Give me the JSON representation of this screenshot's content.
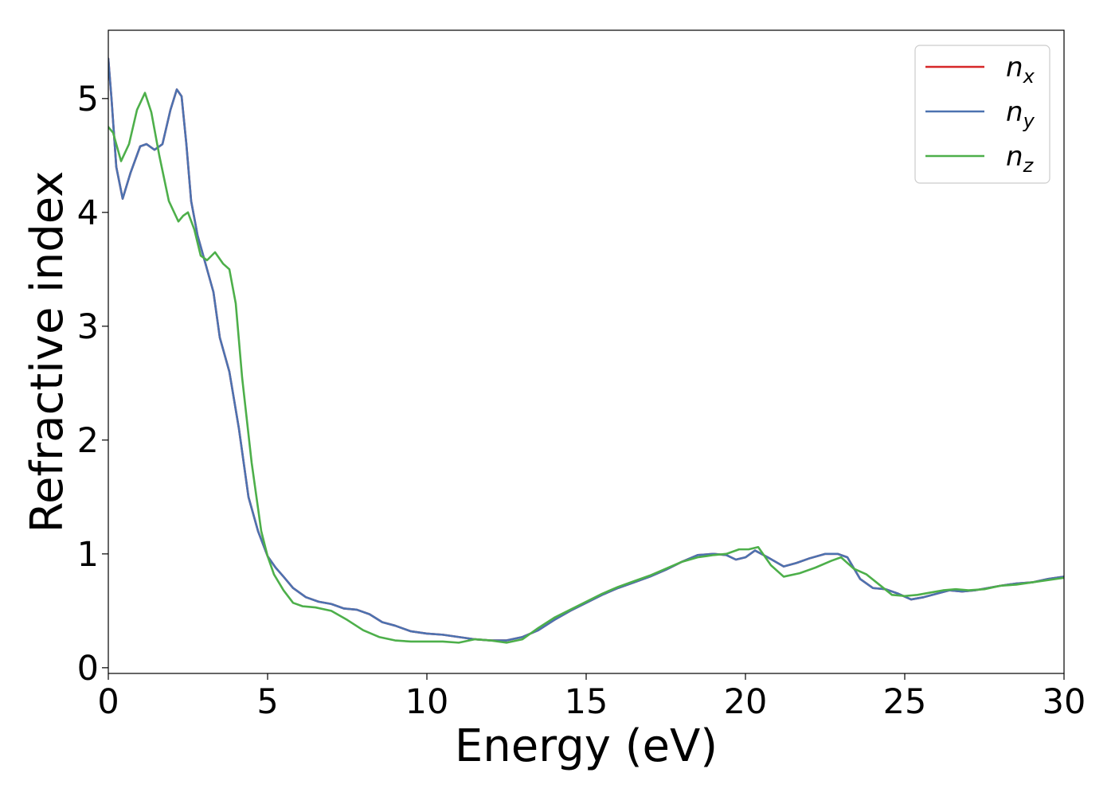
{
  "chart_data": {
    "type": "line",
    "title": "",
    "xlabel": "Energy (eV)",
    "ylabel": "Refractive index",
    "xlim": [
      0,
      30
    ],
    "ylim": [
      -0.05,
      5.6
    ],
    "xticks": [
      0,
      5,
      10,
      15,
      20,
      25,
      30
    ],
    "yticks": [
      0,
      1,
      2,
      3,
      4,
      5
    ],
    "grid": false,
    "legend_position": "top-right",
    "series": [
      {
        "name": "n",
        "subscript": "x",
        "color": "#d62728",
        "x": [
          0,
          0.1,
          0.25,
          0.45,
          0.7,
          1.0,
          1.2,
          1.45,
          1.7,
          1.95,
          2.15,
          2.3,
          2.45,
          2.6,
          2.8,
          3.05,
          3.3,
          3.5,
          3.8,
          4.1,
          4.4,
          4.7,
          5.0,
          5.25,
          5.5,
          5.8,
          6.2,
          6.6,
          7.0,
          7.4,
          7.8,
          8.2,
          8.6,
          9.0,
          9.5,
          10.0,
          10.5,
          11.0,
          11.5,
          12.0,
          12.5,
          13.0,
          13.5,
          14.0,
          14.5,
          15.0,
          15.5,
          16.0,
          16.5,
          17.0,
          17.5,
          18.0,
          18.5,
          19.0,
          19.4,
          19.7,
          20.0,
          20.3,
          20.7,
          21.2,
          21.6,
          22.0,
          22.5,
          22.9,
          23.2,
          23.6,
          24.0,
          24.4,
          24.8,
          25.2,
          25.6,
          26.0,
          26.4,
          26.8,
          27.2,
          27.6,
          28.0,
          28.5,
          29.0,
          29.5,
          30.0
        ],
        "y": [
          5.35,
          5.0,
          4.4,
          4.12,
          4.35,
          4.58,
          4.6,
          4.55,
          4.6,
          4.9,
          5.08,
          5.02,
          4.6,
          4.1,
          3.8,
          3.55,
          3.3,
          2.9,
          2.6,
          2.1,
          1.5,
          1.2,
          0.98,
          0.88,
          0.8,
          0.7,
          0.62,
          0.58,
          0.56,
          0.52,
          0.51,
          0.47,
          0.4,
          0.37,
          0.32,
          0.3,
          0.29,
          0.27,
          0.25,
          0.24,
          0.24,
          0.27,
          0.33,
          0.42,
          0.5,
          0.57,
          0.64,
          0.7,
          0.75,
          0.8,
          0.86,
          0.93,
          0.99,
          1.0,
          0.99,
          0.95,
          0.97,
          1.03,
          0.97,
          0.89,
          0.92,
          0.96,
          1.0,
          1.0,
          0.97,
          0.78,
          0.7,
          0.69,
          0.65,
          0.6,
          0.62,
          0.65,
          0.68,
          0.67,
          0.68,
          0.7,
          0.72,
          0.74,
          0.75,
          0.78,
          0.8
        ]
      },
      {
        "name": "n",
        "subscript": "y",
        "color": "#4c72b0",
        "x": [
          0,
          0.1,
          0.25,
          0.45,
          0.7,
          1.0,
          1.2,
          1.45,
          1.7,
          1.95,
          2.15,
          2.3,
          2.45,
          2.6,
          2.8,
          3.05,
          3.3,
          3.5,
          3.8,
          4.1,
          4.4,
          4.7,
          5.0,
          5.25,
          5.5,
          5.8,
          6.2,
          6.6,
          7.0,
          7.4,
          7.8,
          8.2,
          8.6,
          9.0,
          9.5,
          10.0,
          10.5,
          11.0,
          11.5,
          12.0,
          12.5,
          13.0,
          13.5,
          14.0,
          14.5,
          15.0,
          15.5,
          16.0,
          16.5,
          17.0,
          17.5,
          18.0,
          18.5,
          19.0,
          19.4,
          19.7,
          20.0,
          20.3,
          20.7,
          21.2,
          21.6,
          22.0,
          22.5,
          22.9,
          23.2,
          23.6,
          24.0,
          24.4,
          24.8,
          25.2,
          25.6,
          26.0,
          26.4,
          26.8,
          27.2,
          27.6,
          28.0,
          28.5,
          29.0,
          29.5,
          30.0
        ],
        "y": [
          5.35,
          5.0,
          4.4,
          4.12,
          4.35,
          4.58,
          4.6,
          4.55,
          4.6,
          4.9,
          5.08,
          5.02,
          4.6,
          4.1,
          3.8,
          3.55,
          3.3,
          2.9,
          2.6,
          2.1,
          1.5,
          1.2,
          0.98,
          0.88,
          0.8,
          0.7,
          0.62,
          0.58,
          0.56,
          0.52,
          0.51,
          0.47,
          0.4,
          0.37,
          0.32,
          0.3,
          0.29,
          0.27,
          0.25,
          0.24,
          0.24,
          0.27,
          0.33,
          0.42,
          0.5,
          0.57,
          0.64,
          0.7,
          0.75,
          0.8,
          0.86,
          0.93,
          0.99,
          1.0,
          0.99,
          0.95,
          0.97,
          1.03,
          0.97,
          0.89,
          0.92,
          0.96,
          1.0,
          1.0,
          0.97,
          0.78,
          0.7,
          0.69,
          0.65,
          0.6,
          0.62,
          0.65,
          0.68,
          0.67,
          0.68,
          0.7,
          0.72,
          0.74,
          0.75,
          0.78,
          0.8
        ]
      },
      {
        "name": "n",
        "subscript": "z",
        "color": "#4daf4a",
        "x": [
          0,
          0.15,
          0.4,
          0.65,
          0.9,
          1.15,
          1.35,
          1.6,
          1.9,
          2.2,
          2.35,
          2.5,
          2.7,
          2.9,
          3.1,
          3.35,
          3.6,
          3.8,
          4.0,
          4.2,
          4.5,
          4.8,
          5.0,
          5.2,
          5.5,
          5.8,
          6.1,
          6.5,
          7.0,
          7.5,
          8.0,
          8.5,
          9.0,
          9.5,
          10.0,
          10.5,
          11.0,
          11.5,
          12.0,
          12.5,
          13.0,
          13.5,
          14.0,
          14.5,
          15.0,
          15.5,
          16.0,
          16.5,
          17.0,
          17.5,
          18.0,
          18.5,
          19.0,
          19.4,
          19.8,
          20.1,
          20.4,
          20.8,
          21.2,
          21.7,
          22.2,
          22.7,
          23.0,
          23.4,
          23.8,
          24.2,
          24.6,
          25.0,
          25.4,
          25.8,
          26.2,
          26.6,
          27.0,
          27.5,
          28.0,
          28.5,
          29.0,
          29.5,
          30.0
        ],
        "y": [
          4.75,
          4.7,
          4.45,
          4.6,
          4.9,
          5.05,
          4.88,
          4.5,
          4.1,
          3.92,
          3.97,
          4.0,
          3.85,
          3.62,
          3.58,
          3.65,
          3.55,
          3.5,
          3.2,
          2.55,
          1.8,
          1.2,
          0.98,
          0.82,
          0.68,
          0.57,
          0.54,
          0.53,
          0.5,
          0.42,
          0.33,
          0.27,
          0.24,
          0.23,
          0.23,
          0.23,
          0.22,
          0.25,
          0.24,
          0.22,
          0.25,
          0.35,
          0.44,
          0.51,
          0.58,
          0.65,
          0.71,
          0.76,
          0.81,
          0.87,
          0.93,
          0.97,
          0.99,
          1.0,
          1.04,
          1.04,
          1.06,
          0.9,
          0.8,
          0.83,
          0.88,
          0.94,
          0.97,
          0.87,
          0.82,
          0.73,
          0.64,
          0.63,
          0.64,
          0.66,
          0.68,
          0.69,
          0.68,
          0.69,
          0.72,
          0.73,
          0.75,
          0.77,
          0.79
        ]
      }
    ]
  }
}
